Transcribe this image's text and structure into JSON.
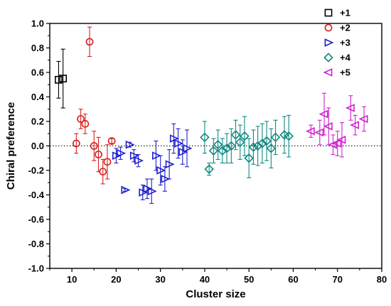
{
  "chart_data": {
    "type": "scatter",
    "xlabel": "Cluster size",
    "ylabel": "Chiral preference",
    "xlim": [
      5,
      80
    ],
    "ylim": [
      -1.0,
      1.0
    ],
    "x_ticks": [
      10,
      20,
      30,
      40,
      50,
      60,
      70,
      80
    ],
    "y_ticks": [
      -1.0,
      -0.8,
      -0.6,
      -0.4,
      -0.2,
      0.0,
      0.2,
      0.4,
      0.6,
      0.8,
      1.0
    ],
    "y_tick_labels": [
      "-1.0",
      "-0.8",
      "-0.6",
      "-0.4",
      "-0.2",
      "0.0",
      "0.2",
      "0.4",
      "0.6",
      "0.8",
      "1.0"
    ],
    "reference_line": {
      "y": 0.0,
      "style": "dotted"
    },
    "legend_position": "top-right",
    "series": [
      {
        "name": "+1",
        "marker": "square",
        "color": "#000000",
        "points": [
          {
            "x": 7,
            "y": 0.54,
            "err": 0.15
          },
          {
            "x": 8,
            "y": 0.55,
            "err": 0.24
          }
        ]
      },
      {
        "name": "+2",
        "marker": "circle",
        "color": "#d62020",
        "points": [
          {
            "x": 11,
            "y": 0.02,
            "err": 0.08
          },
          {
            "x": 12,
            "y": 0.22,
            "err": 0.08
          },
          {
            "x": 13,
            "y": 0.18,
            "err": 0.08
          },
          {
            "x": 14,
            "y": 0.85,
            "err": 0.12
          },
          {
            "x": 15,
            "y": 0.0,
            "err": 0.12
          },
          {
            "x": 16,
            "y": -0.07,
            "err": 0.14
          },
          {
            "x": 17,
            "y": -0.21,
            "err": 0.1
          },
          {
            "x": 18,
            "y": -0.13,
            "err": 0.14
          },
          {
            "x": 19,
            "y": 0.04,
            "err": 0.02
          }
        ]
      },
      {
        "name": "+3",
        "marker": "triangle-right",
        "color": "#1f1fcf",
        "points": [
          {
            "x": 20,
            "y": -0.08,
            "err": 0.06
          },
          {
            "x": 21,
            "y": -0.06,
            "err": 0.05
          },
          {
            "x": 22,
            "y": -0.36,
            "err": 0.01
          },
          {
            "x": 23,
            "y": 0.01,
            "err": 0.02
          },
          {
            "x": 24,
            "y": -0.08,
            "err": 0.05
          },
          {
            "x": 25,
            "y": -0.12,
            "err": 0.05
          },
          {
            "x": 26,
            "y": -0.38,
            "err": 0.06
          },
          {
            "x": 27,
            "y": -0.35,
            "err": 0.08
          },
          {
            "x": 28,
            "y": -0.37,
            "err": 0.1
          },
          {
            "x": 29,
            "y": -0.08,
            "err": 0.12
          },
          {
            "x": 30,
            "y": -0.2,
            "err": 0.12
          },
          {
            "x": 31,
            "y": -0.27,
            "err": 0.1
          },
          {
            "x": 32,
            "y": -0.15,
            "err": 0.12
          },
          {
            "x": 33,
            "y": 0.06,
            "err": 0.12
          },
          {
            "x": 34,
            "y": 0.02,
            "err": 0.12
          },
          {
            "x": 35,
            "y": -0.05,
            "err": 0.1
          },
          {
            "x": 36,
            "y": -0.02,
            "err": 0.15
          }
        ]
      },
      {
        "name": "+4",
        "marker": "diamond",
        "color": "#0f8a80",
        "points": [
          {
            "x": 40,
            "y": 0.07,
            "err": 0.13
          },
          {
            "x": 41,
            "y": -0.19,
            "err": 0.05
          },
          {
            "x": 42,
            "y": -0.04,
            "err": 0.1
          },
          {
            "x": 43,
            "y": 0.01,
            "err": 0.12
          },
          {
            "x": 44,
            "y": -0.04,
            "err": 0.1
          },
          {
            "x": 45,
            "y": -0.02,
            "err": 0.12
          },
          {
            "x": 46,
            "y": 0.0,
            "err": 0.14
          },
          {
            "x": 47,
            "y": 0.09,
            "err": 0.12
          },
          {
            "x": 48,
            "y": 0.03,
            "err": 0.14
          },
          {
            "x": 49,
            "y": 0.08,
            "err": 0.16
          },
          {
            "x": 50,
            "y": -0.1,
            "err": 0.16
          },
          {
            "x": 51,
            "y": -0.01,
            "err": 0.14
          },
          {
            "x": 52,
            "y": 0.0,
            "err": 0.16
          },
          {
            "x": 53,
            "y": 0.02,
            "err": 0.16
          },
          {
            "x": 54,
            "y": 0.04,
            "err": 0.16
          },
          {
            "x": 55,
            "y": -0.02,
            "err": 0.16
          },
          {
            "x": 56,
            "y": 0.07,
            "err": 0.14
          },
          {
            "x": 58,
            "y": 0.09,
            "err": 0.15
          },
          {
            "x": 59,
            "y": 0.08,
            "err": 0.17
          }
        ]
      },
      {
        "name": "+5",
        "marker": "triangle-left",
        "color": "#d020d0",
        "points": [
          {
            "x": 64,
            "y": 0.12,
            "err": 0.05
          },
          {
            "x": 66,
            "y": 0.11,
            "err": 0.1
          },
          {
            "x": 67,
            "y": 0.26,
            "err": 0.17
          },
          {
            "x": 68,
            "y": 0.16,
            "err": 0.15
          },
          {
            "x": 69,
            "y": 0.01,
            "err": 0.08
          },
          {
            "x": 70,
            "y": 0.02,
            "err": 0.1
          },
          {
            "x": 71,
            "y": 0.05,
            "err": 0.14
          },
          {
            "x": 73,
            "y": 0.31,
            "err": 0.1
          },
          {
            "x": 74,
            "y": 0.17,
            "err": 0.08
          },
          {
            "x": 76,
            "y": 0.22,
            "err": 0.1
          }
        ]
      }
    ]
  }
}
